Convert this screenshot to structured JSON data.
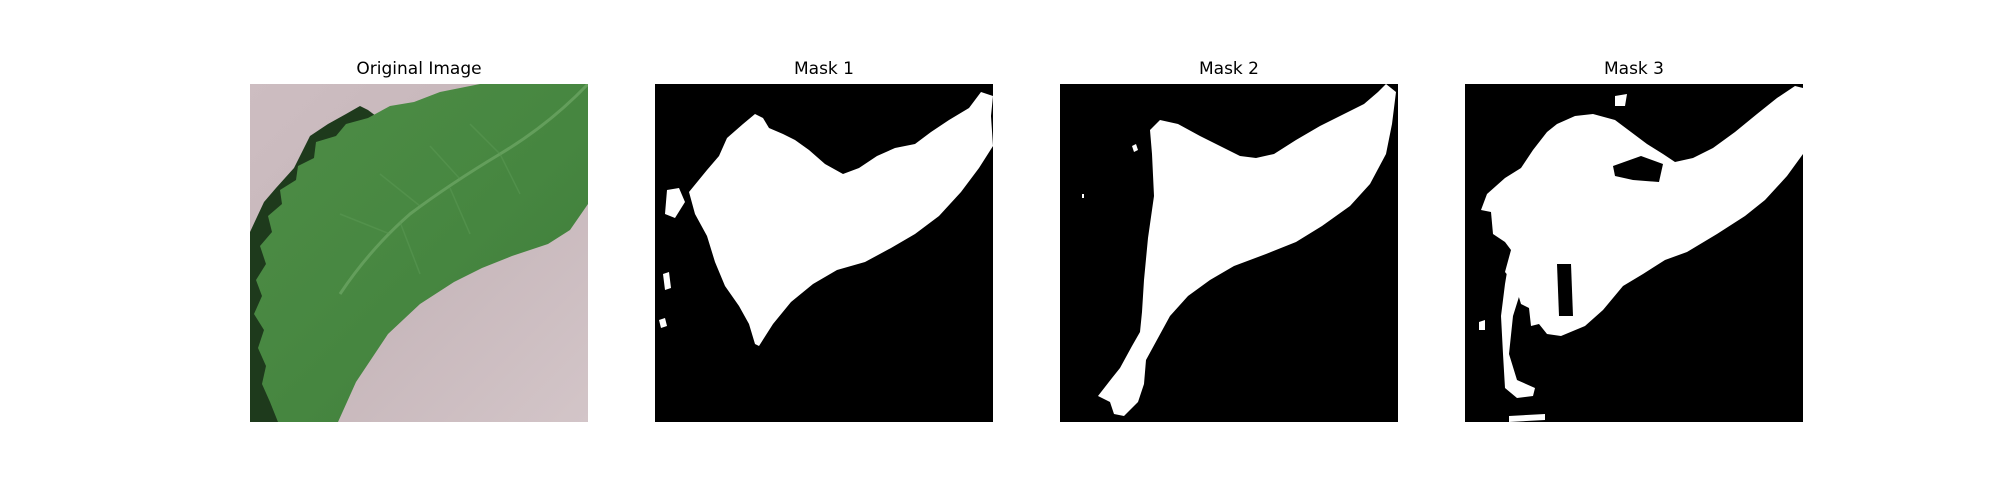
{
  "panels": [
    {
      "title": "Original Image",
      "content": "leaf-photo"
    },
    {
      "title": "Mask 1",
      "content": "binary-mask"
    },
    {
      "title": "Mask 2",
      "content": "binary-mask"
    },
    {
      "title": "Mask 3",
      "content": "binary-mask"
    }
  ],
  "colors": {
    "background": "#ffffff",
    "mask_foreground": "#ffffff",
    "mask_background": "#000000",
    "leaf_green": "#4a8a42",
    "leaf_dark": "#1f3a1c",
    "surface": "#c8b9bd"
  }
}
